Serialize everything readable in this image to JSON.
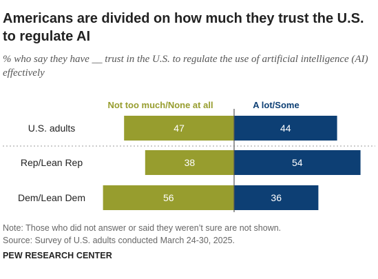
{
  "title": "Americans are divided on how much they trust the U.S. to regulate AI",
  "subtitle": "% who say they have __ trust in the U.S. to regulate the use of artificial intelligence (AI) effectively",
  "note": "Note: Those who did not answer or said they weren’t sure are not shown.",
  "source": "Source: Survey of U.S. adults conducted March 24-30, 2025.",
  "org": "PEW RESEARCH CENTER",
  "colors": {
    "negative": "#979d2e",
    "positive": "#0d3f74",
    "negative_label": "#979d2e",
    "positive_label": "#0d3f74"
  },
  "chart_data": {
    "type": "bar",
    "orientation": "horizontal-diverging",
    "categories": [
      "U.S. adults",
      "Rep/Lean Rep",
      "Dem/Lean Dem"
    ],
    "series": [
      {
        "name": "Not too much/None at all",
        "values": [
          47,
          38,
          56
        ]
      },
      {
        "name": "A lot/Some",
        "values": [
          44,
          54,
          36
        ]
      }
    ],
    "legend": "top"
  }
}
